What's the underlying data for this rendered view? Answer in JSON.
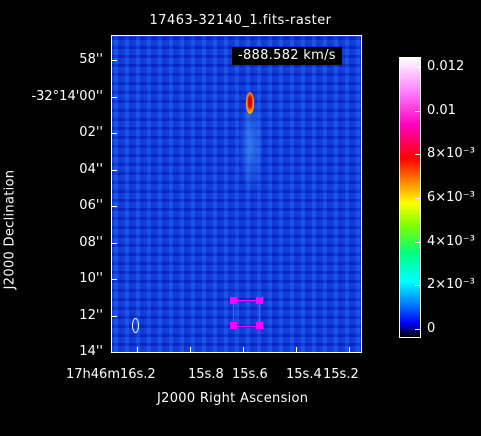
{
  "title": "17463-32140_1.fits-raster",
  "velocity_label": "-888.582 km/s",
  "axes": {
    "y_title": "J2000 Declination",
    "x_title": "J2000 Right Ascension",
    "y_ticks": [
      "58''",
      "-32°14'00''",
      "02''",
      "04''",
      "06''",
      "08''",
      "10''",
      "12''",
      "14''"
    ],
    "x_ticks": [
      "17h46m16s.2",
      "15s.8",
      "15s.6",
      "15s.4",
      "15s.2"
    ]
  },
  "colorbar": {
    "labels": [
      "0.012",
      "0.01",
      "8×10⁻³",
      "6×10⁻³",
      "4×10⁻³",
      "2×10⁻³",
      "0"
    ],
    "colors": [
      "#000000",
      "#0000ff",
      "#00ffff",
      "#00ff00",
      "#ffff00",
      "#ff8000",
      "#ff0000",
      "#ff00ff",
      "#ffffff"
    ]
  },
  "region_color": "#ff00ff",
  "background_color": "#000000"
}
